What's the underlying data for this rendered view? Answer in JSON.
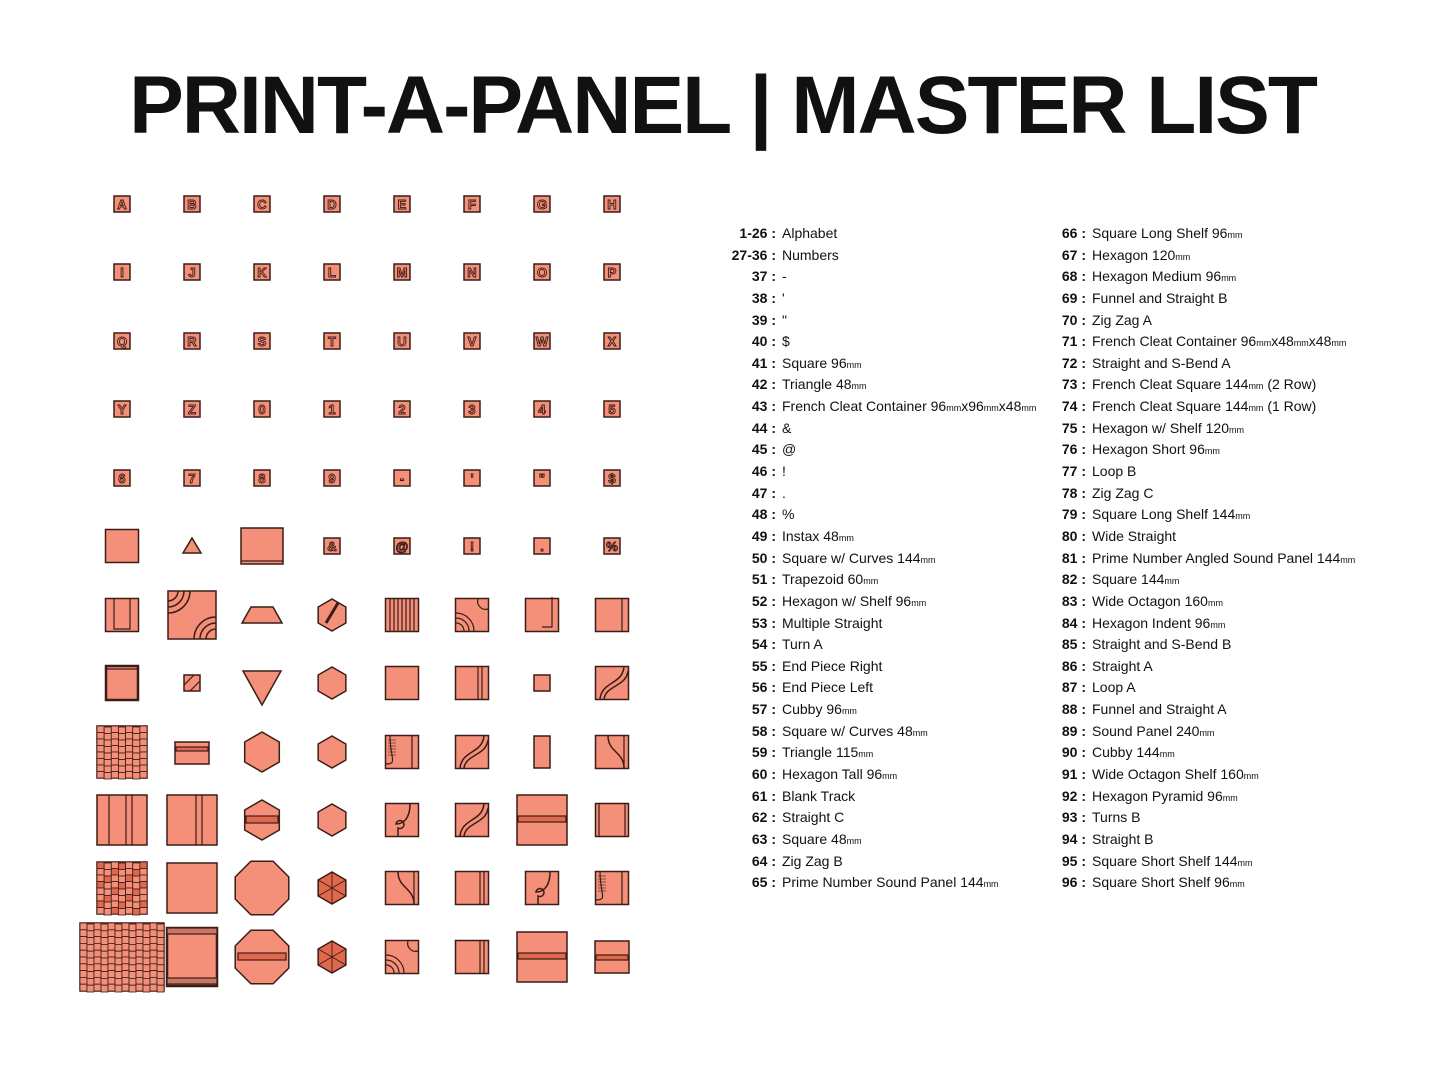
{
  "title": "PRINT-A-PANEL | MASTER LIST",
  "colors": {
    "tile_fill": "#f4907a",
    "tile_stroke": "#3b1d17",
    "tile_dark": "#e0684c"
  },
  "tiles": [
    {
      "shape": "letter",
      "glyph": "A"
    },
    {
      "shape": "letter",
      "glyph": "B"
    },
    {
      "shape": "letter",
      "glyph": "C"
    },
    {
      "shape": "letter",
      "glyph": "D"
    },
    {
      "shape": "letter",
      "glyph": "E"
    },
    {
      "shape": "letter",
      "glyph": "F"
    },
    {
      "shape": "letter",
      "glyph": "G"
    },
    {
      "shape": "letter",
      "glyph": "H"
    },
    {
      "shape": "letter",
      "glyph": "I"
    },
    {
      "shape": "letter",
      "glyph": "J"
    },
    {
      "shape": "letter",
      "glyph": "K"
    },
    {
      "shape": "letter",
      "glyph": "L"
    },
    {
      "shape": "letter",
      "glyph": "M"
    },
    {
      "shape": "letter",
      "glyph": "N"
    },
    {
      "shape": "letter",
      "glyph": "O"
    },
    {
      "shape": "letter",
      "glyph": "P"
    },
    {
      "shape": "letter",
      "glyph": "Q"
    },
    {
      "shape": "letter",
      "glyph": "R"
    },
    {
      "shape": "letter",
      "glyph": "S"
    },
    {
      "shape": "letter",
      "glyph": "T"
    },
    {
      "shape": "letter",
      "glyph": "U"
    },
    {
      "shape": "letter",
      "glyph": "V"
    },
    {
      "shape": "letter",
      "glyph": "W"
    },
    {
      "shape": "letter",
      "glyph": "X"
    },
    {
      "shape": "letter",
      "glyph": "Y"
    },
    {
      "shape": "letter",
      "glyph": "Z"
    },
    {
      "shape": "letter",
      "glyph": "0"
    },
    {
      "shape": "letter",
      "glyph": "1"
    },
    {
      "shape": "letter",
      "glyph": "2"
    },
    {
      "shape": "letter",
      "glyph": "3"
    },
    {
      "shape": "letter",
      "glyph": "4"
    },
    {
      "shape": "letter",
      "glyph": "5"
    },
    {
      "shape": "letter",
      "glyph": "6"
    },
    {
      "shape": "letter",
      "glyph": "7"
    },
    {
      "shape": "letter",
      "glyph": "8"
    },
    {
      "shape": "letter",
      "glyph": "9"
    },
    {
      "shape": "letter",
      "glyph": "-"
    },
    {
      "shape": "letter",
      "glyph": "'"
    },
    {
      "shape": "letter",
      "glyph": "\""
    },
    {
      "shape": "letter",
      "glyph": "$"
    },
    {
      "shape": "square-large"
    },
    {
      "shape": "triangle-small"
    },
    {
      "shape": "wide-container"
    },
    {
      "shape": "letter",
      "glyph": "&"
    },
    {
      "shape": "letter",
      "glyph": "@"
    },
    {
      "shape": "letter",
      "glyph": "!"
    },
    {
      "shape": "letter",
      "glyph": "."
    },
    {
      "shape": "letter",
      "glyph": "%"
    },
    {
      "shape": "instax"
    },
    {
      "shape": "curves-large"
    },
    {
      "shape": "trapezoid"
    },
    {
      "shape": "hexagon-shelf-diag"
    },
    {
      "shape": "multi-straight"
    },
    {
      "shape": "turn"
    },
    {
      "shape": "end-right"
    },
    {
      "shape": "end-left"
    },
    {
      "shape": "cubby"
    },
    {
      "shape": "curves-small"
    },
    {
      "shape": "triangle-down"
    },
    {
      "shape": "hexagon"
    },
    {
      "shape": "square-plain"
    },
    {
      "shape": "straight-c"
    },
    {
      "shape": "square-tiny"
    },
    {
      "shape": "zigzag"
    },
    {
      "shape": "prime"
    },
    {
      "shape": "long-shelf"
    },
    {
      "shape": "hexagon-large"
    },
    {
      "shape": "hexagon"
    },
    {
      "shape": "funnel"
    },
    {
      "shape": "zigzag"
    },
    {
      "shape": "tall-rect"
    },
    {
      "shape": "sbend"
    },
    {
      "shape": "fc-2row"
    },
    {
      "shape": "fc-1row"
    },
    {
      "shape": "hexagon-shelf"
    },
    {
      "shape": "hexagon"
    },
    {
      "shape": "loop"
    },
    {
      "shape": "zigzag"
    },
    {
      "shape": "long-shelf-wide"
    },
    {
      "shape": "wide-straight"
    },
    {
      "shape": "prime-angled"
    },
    {
      "shape": "square-144"
    },
    {
      "shape": "octagon"
    },
    {
      "shape": "hexagon-indent"
    },
    {
      "shape": "sbend"
    },
    {
      "shape": "straight-a"
    },
    {
      "shape": "loop"
    },
    {
      "shape": "funnel"
    },
    {
      "shape": "sound-240"
    },
    {
      "shape": "cubby-large"
    },
    {
      "shape": "octagon-shelf"
    },
    {
      "shape": "hexagon-indent"
    },
    {
      "shape": "turn"
    },
    {
      "shape": "straight-a"
    },
    {
      "shape": "long-shelf-wide"
    },
    {
      "shape": "short-shelf"
    }
  ],
  "list_left": [
    {
      "num": "1-26",
      "text": "Alphabet"
    },
    {
      "num": "27-36",
      "text": "Numbers"
    },
    {
      "num": "37",
      "text": "-"
    },
    {
      "num": "38",
      "text": "'"
    },
    {
      "num": "39",
      "text": "\""
    },
    {
      "num": "40",
      "text": "$"
    },
    {
      "num": "41",
      "text": "Square 96|mm"
    },
    {
      "num": "42",
      "text": "Triangle 48|mm"
    },
    {
      "num": "43",
      "text": "French Cleat Container 96|mm|x96|mm|x48|mm"
    },
    {
      "num": "44",
      "text": "&"
    },
    {
      "num": "45",
      "text": "@"
    },
    {
      "num": "46",
      "text": "!"
    },
    {
      "num": "47",
      "text": "."
    },
    {
      "num": "48",
      "text": "%"
    },
    {
      "num": "49",
      "text": "Instax 48|mm"
    },
    {
      "num": "50",
      "text": "Square w/ Curves 144|mm"
    },
    {
      "num": "51",
      "text": "Trapezoid 60|mm"
    },
    {
      "num": "52",
      "text": "Hexagon w/ Shelf 96|mm"
    },
    {
      "num": "53",
      "text": "Multiple Straight"
    },
    {
      "num": "54",
      "text": "Turn A"
    },
    {
      "num": "55",
      "text": "End Piece Right"
    },
    {
      "num": "56",
      "text": "End Piece Left"
    },
    {
      "num": "57",
      "text": "Cubby 96|mm"
    },
    {
      "num": "58",
      "text": "Square w/ Curves 48|mm"
    },
    {
      "num": "59",
      "text": "Triangle 115|mm"
    },
    {
      "num": "60",
      "text": "Hexagon Tall 96|mm"
    },
    {
      "num": "61",
      "text": "Blank Track"
    },
    {
      "num": "62",
      "text": "Straight C"
    },
    {
      "num": "63",
      "text": "Square 48|mm"
    },
    {
      "num": "64",
      "text": "Zig Zag B"
    },
    {
      "num": "65",
      "text": "Prime Number Sound Panel 144|mm"
    }
  ],
  "list_right": [
    {
      "num": "66",
      "text": "Square Long Shelf 96|mm"
    },
    {
      "num": "67",
      "text": "Hexagon 120|mm"
    },
    {
      "num": "68",
      "text": "Hexagon Medium 96|mm"
    },
    {
      "num": "69",
      "text": "Funnel and Straight B"
    },
    {
      "num": "70",
      "text": "Zig Zag A"
    },
    {
      "num": "71",
      "text": "French Cleat Container 96|mm|x48|mm|x48|mm"
    },
    {
      "num": "72",
      "text": "Straight and S-Bend A"
    },
    {
      "num": "73",
      "text": "French Cleat Square 144|mm| (2 Row)"
    },
    {
      "num": "74",
      "text": "French Cleat Square 144|mm| (1 Row)"
    },
    {
      "num": "75",
      "text": "Hexagon w/ Shelf 120|mm"
    },
    {
      "num": "76",
      "text": "Hexagon Short 96|mm"
    },
    {
      "num": "77",
      "text": "Loop B"
    },
    {
      "num": "78",
      "text": "Zig Zag C"
    },
    {
      "num": "79",
      "text": "Square Long Shelf 144|mm"
    },
    {
      "num": "80",
      "text": "Wide Straight"
    },
    {
      "num": "81",
      "text": "Prime Number Angled Sound Panel 144|mm"
    },
    {
      "num": "82",
      "text": "Square 144|mm"
    },
    {
      "num": "83",
      "text": "Wide Octagon 160|mm"
    },
    {
      "num": "84",
      "text": "Hexagon Indent 96|mm"
    },
    {
      "num": "85",
      "text": "Straight and S-Bend B"
    },
    {
      "num": "86",
      "text": "Straight A"
    },
    {
      "num": "87",
      "text": "Loop A"
    },
    {
      "num": "88",
      "text": "Funnel and Straight A"
    },
    {
      "num": "89",
      "text": "Sound Panel 240|mm"
    },
    {
      "num": "90",
      "text": "Cubby 144|mm"
    },
    {
      "num": "91",
      "text": "Wide Octagon Shelf 160|mm"
    },
    {
      "num": "92",
      "text": "Hexagon Pyramid 96|mm"
    },
    {
      "num": "93",
      "text": "Turns B"
    },
    {
      "num": "94",
      "text": "Straight B"
    },
    {
      "num": "95",
      "text": "Square Short Shelf 144|mm"
    },
    {
      "num": "96",
      "text": "Square Short Shelf 96|mm"
    }
  ]
}
